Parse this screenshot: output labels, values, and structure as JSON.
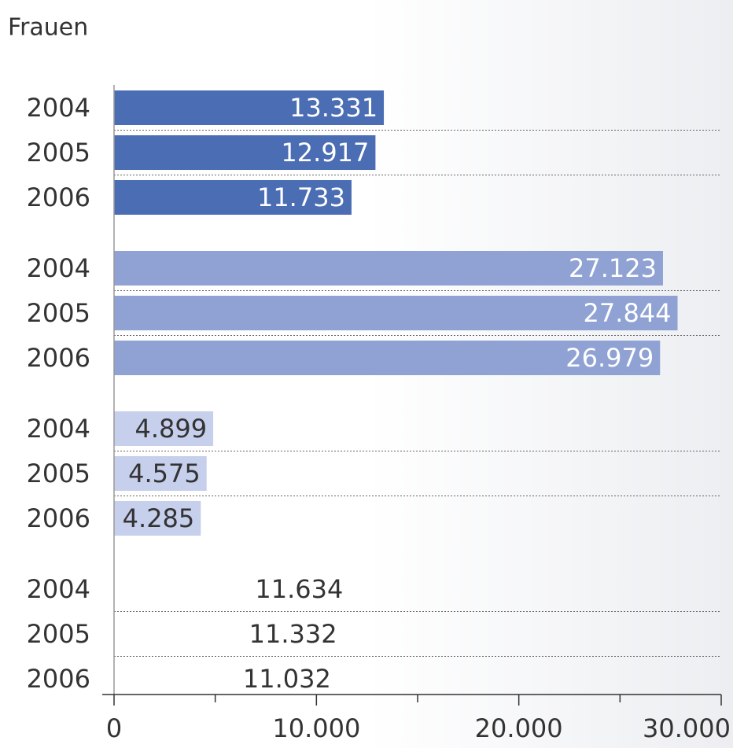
{
  "chart_data": {
    "type": "bar",
    "orientation": "horizontal",
    "title": "Frauen",
    "categories": [
      "2004",
      "2005",
      "2006",
      "2004",
      "2005",
      "2006",
      "2004",
      "2005",
      "2006",
      "2004",
      "2005",
      "2006"
    ],
    "values": [
      13331,
      12917,
      11733,
      27123,
      27844,
      26979,
      4899,
      4575,
      4285,
      11634,
      11332,
      11032
    ],
    "value_labels": [
      "13.331",
      "12.917",
      "11.733",
      "27.123",
      "27.844",
      "26.979",
      "4.899",
      "4.575",
      "4.285",
      "11.634",
      "11.332",
      "11.032"
    ],
    "colors": [
      "#4a6db3",
      "#4a6db3",
      "#4a6db3",
      "#8fa2d3",
      "#8fa2d3",
      "#8fa2d3",
      "#c6cfeb",
      "#c6cfeb",
      "#c6cfeb",
      "#ffffff",
      "#ffffff",
      "#ffffff"
    ],
    "xlim": [
      0,
      30000
    ],
    "xticks": [
      0,
      {
        "value": 10000,
        "label": "10.000"
      },
      {
        "value": 20000,
        "label": "20.000"
      },
      {
        "value": 30000,
        "label": "30.000"
      }
    ],
    "xminor_ticks": [
      5000,
      15000,
      25000
    ]
  }
}
